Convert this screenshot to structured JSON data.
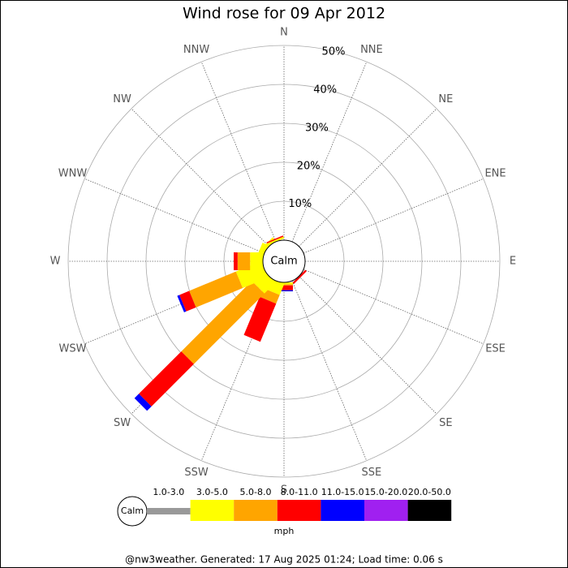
{
  "chart_data": {
    "type": "windrose",
    "title": "Wind rose for 09 Apr 2012",
    "categories": [
      "N",
      "NNE",
      "NE",
      "ENE",
      "E",
      "ESE",
      "SE",
      "SSE",
      "S",
      "SSW",
      "SW",
      "WSW",
      "W",
      "WNW",
      "NW",
      "NNW"
    ],
    "series": [
      {
        "name": "1.0-3.0",
        "color": "#999999",
        "values": [
          0,
          0,
          0,
          0,
          0,
          0,
          0,
          0,
          0,
          0,
          0,
          0,
          0,
          0,
          0,
          0
        ]
      },
      {
        "name": "3.0-5.0",
        "color": "#ffff00",
        "values": [
          0,
          0,
          0,
          0,
          0,
          0,
          0,
          0,
          0.5,
          3,
          4,
          7,
          3.3,
          1.5,
          1,
          0.5
        ]
      },
      {
        "name": "5.0-8.0",
        "color": "#ffa500",
        "values": [
          0,
          0,
          0,
          0,
          0,
          0,
          0,
          0,
          0.3,
          2.4,
          25.6,
          13,
          3.2,
          0,
          0,
          0
        ]
      },
      {
        "name": "8.0-11.0",
        "color": "#ff0000",
        "values": [
          0,
          0,
          0,
          0,
          0,
          0,
          0.5,
          0,
          1.2,
          10.6,
          15.4,
          2.7,
          1,
          0,
          0,
          0.3
        ]
      },
      {
        "name": "11.0-15.0",
        "color": "#0000ff",
        "values": [
          0,
          0,
          0,
          0,
          0,
          0,
          0,
          0,
          0.3,
          0,
          1.6,
          0.6,
          0,
          0,
          0,
          0
        ]
      },
      {
        "name": "15.0-20.0",
        "color": "#a020f0",
        "values": [
          0,
          0,
          0,
          0,
          0,
          0,
          0,
          0,
          0,
          0,
          0,
          0,
          0,
          0,
          0,
          0
        ]
      },
      {
        "name": "20.0-50.0",
        "color": "#000000",
        "values": [
          0,
          0,
          0,
          0,
          0,
          0,
          0,
          0,
          0,
          0,
          0,
          0,
          0,
          0,
          0,
          0
        ]
      }
    ],
    "rlim": [
      0,
      50
    ],
    "rticks": [
      {
        "value": 10,
        "label": "10%"
      },
      {
        "value": 20,
        "label": "20%"
      },
      {
        "value": 30,
        "label": "30%"
      },
      {
        "value": 40,
        "label": "40%"
      },
      {
        "value": 50,
        "label": "50%"
      }
    ],
    "center_label": "Calm",
    "unit": "mph",
    "footer": "@nw3weather. Generated: 17 Aug 2025 01:24; Load time: 0.06 s"
  }
}
